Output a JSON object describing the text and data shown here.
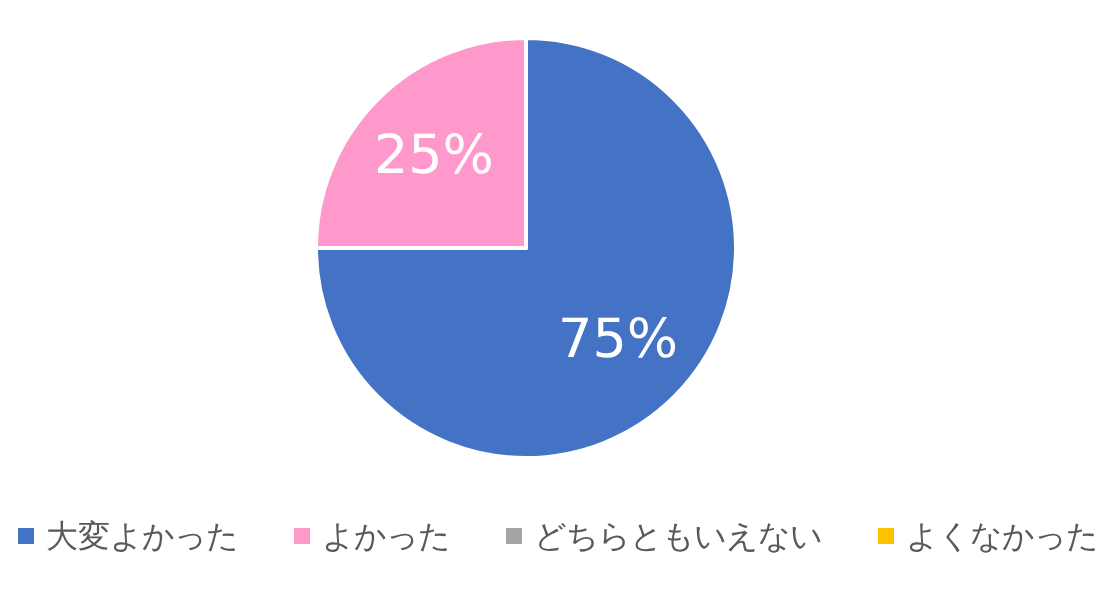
{
  "chart_data": {
    "type": "pie",
    "categories": [
      "大変よかった",
      "よかった",
      "どちらともいえない",
      "よくなかった"
    ],
    "values": [
      75,
      25,
      0,
      0
    ],
    "colors": [
      "#4472c4",
      "#ff99cc",
      "#a5a5a5",
      "#ffc000"
    ],
    "value_labels": [
      "75%",
      "25%",
      null,
      null
    ],
    "legend": "bottom"
  }
}
